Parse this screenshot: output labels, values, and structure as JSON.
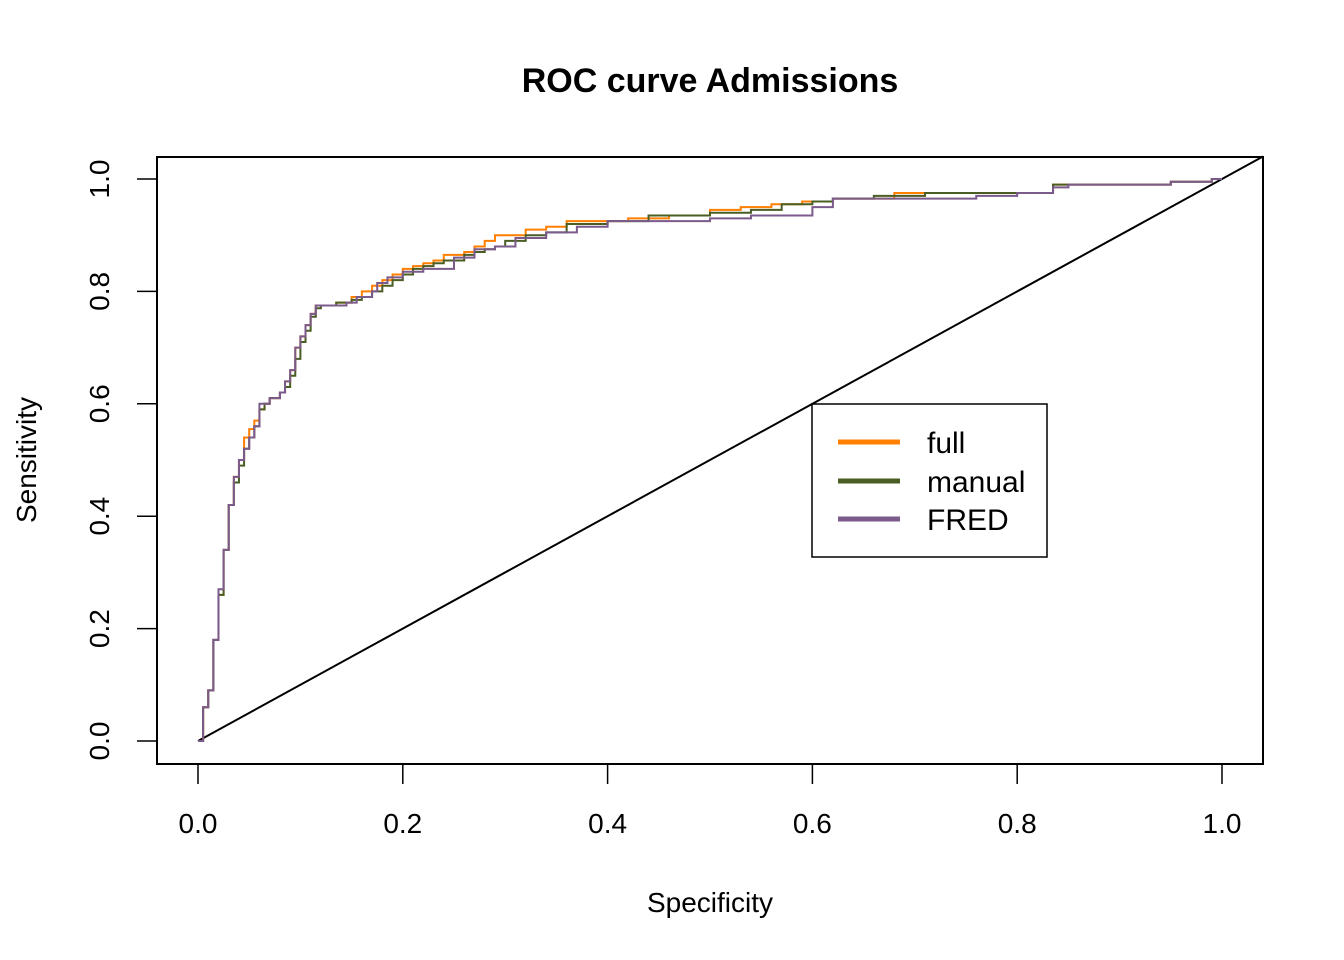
{
  "chart_data": {
    "type": "line",
    "title": "ROC curve Admissions",
    "xlabel": "Specificity",
    "ylabel": "Sensitivity",
    "xlim": [
      0.0,
      1.0
    ],
    "ylim": [
      0.0,
      1.0
    ],
    "x_ticks": [
      "0.0",
      "0.2",
      "0.4",
      "0.6",
      "0.8",
      "1.0"
    ],
    "y_ticks": [
      "0.0",
      "0.2",
      "0.4",
      "0.6",
      "0.8",
      "1.0"
    ],
    "grid": false,
    "legend_position": "center-right",
    "reference_line": {
      "x": [
        0,
        1.04
      ],
      "y": [
        0,
        1.04
      ]
    },
    "series": [
      {
        "name": "full",
        "color": "#ff7f00",
        "x": [
          0,
          0.005,
          0.01,
          0.015,
          0.02,
          0.025,
          0.03,
          0.035,
          0.04,
          0.045,
          0.05,
          0.055,
          0.06,
          0.065,
          0.07,
          0.08,
          0.085,
          0.09,
          0.095,
          0.1,
          0.105,
          0.11,
          0.115,
          0.12,
          0.135,
          0.15,
          0.16,
          0.17,
          0.18,
          0.19,
          0.2,
          0.21,
          0.22,
          0.23,
          0.24,
          0.26,
          0.27,
          0.28,
          0.29,
          0.3,
          0.32,
          0.34,
          0.36,
          0.4,
          0.42,
          0.44,
          0.46,
          0.5,
          0.53,
          0.56,
          0.59,
          0.62,
          0.65,
          0.68,
          0.72,
          0.76,
          0.8,
          0.83,
          0.835,
          0.85,
          0.9,
          0.95,
          0.975,
          0.99,
          1.0
        ],
        "y": [
          0,
          0.06,
          0.09,
          0.18,
          0.26,
          0.34,
          0.42,
          0.47,
          0.5,
          0.54,
          0.555,
          0.57,
          0.59,
          0.6,
          0.61,
          0.62,
          0.64,
          0.66,
          0.7,
          0.72,
          0.74,
          0.76,
          0.775,
          0.775,
          0.78,
          0.79,
          0.8,
          0.81,
          0.82,
          0.83,
          0.84,
          0.845,
          0.85,
          0.855,
          0.865,
          0.87,
          0.88,
          0.89,
          0.9,
          0.9,
          0.91,
          0.915,
          0.925,
          0.925,
          0.93,
          0.93,
          0.935,
          0.945,
          0.95,
          0.955,
          0.96,
          0.965,
          0.965,
          0.975,
          0.975,
          0.975,
          0.975,
          0.975,
          0.99,
          0.99,
          0.99,
          0.995,
          0.995,
          1.0,
          1.0
        ]
      },
      {
        "name": "manual",
        "color": "#4a5d23",
        "x": [
          0,
          0.005,
          0.01,
          0.015,
          0.02,
          0.025,
          0.03,
          0.035,
          0.04,
          0.045,
          0.05,
          0.055,
          0.06,
          0.065,
          0.07,
          0.08,
          0.085,
          0.09,
          0.095,
          0.1,
          0.105,
          0.11,
          0.115,
          0.12,
          0.135,
          0.15,
          0.16,
          0.17,
          0.18,
          0.19,
          0.2,
          0.21,
          0.22,
          0.23,
          0.24,
          0.26,
          0.27,
          0.28,
          0.29,
          0.3,
          0.32,
          0.34,
          0.36,
          0.4,
          0.44,
          0.5,
          0.54,
          0.57,
          0.6,
          0.62,
          0.66,
          0.71,
          0.76,
          0.8,
          0.835,
          0.85,
          0.9,
          0.95,
          0.975,
          0.99,
          1.0
        ],
        "y": [
          0,
          0.06,
          0.09,
          0.18,
          0.26,
          0.34,
          0.42,
          0.46,
          0.49,
          0.52,
          0.54,
          0.56,
          0.59,
          0.6,
          0.61,
          0.62,
          0.63,
          0.65,
          0.68,
          0.71,
          0.73,
          0.755,
          0.77,
          0.775,
          0.78,
          0.785,
          0.79,
          0.8,
          0.81,
          0.82,
          0.83,
          0.84,
          0.845,
          0.85,
          0.855,
          0.865,
          0.87,
          0.875,
          0.88,
          0.89,
          0.9,
          0.905,
          0.92,
          0.925,
          0.935,
          0.94,
          0.945,
          0.955,
          0.96,
          0.965,
          0.97,
          0.975,
          0.975,
          0.975,
          0.99,
          0.99,
          0.99,
          0.995,
          0.995,
          1.0,
          1.0
        ]
      },
      {
        "name": "FRED",
        "color": "#7b5a8c",
        "x": [
          0,
          0.005,
          0.01,
          0.015,
          0.02,
          0.025,
          0.03,
          0.035,
          0.04,
          0.045,
          0.05,
          0.055,
          0.06,
          0.065,
          0.07,
          0.08,
          0.085,
          0.09,
          0.095,
          0.1,
          0.105,
          0.11,
          0.115,
          0.12,
          0.145,
          0.155,
          0.17,
          0.175,
          0.185,
          0.2,
          0.22,
          0.25,
          0.27,
          0.29,
          0.31,
          0.34,
          0.37,
          0.4,
          0.44,
          0.5,
          0.54,
          0.6,
          0.62,
          0.66,
          0.7,
          0.76,
          0.8,
          0.835,
          0.85,
          0.9,
          0.95,
          0.975,
          0.99,
          1.0
        ],
        "y": [
          0,
          0.06,
          0.09,
          0.18,
          0.27,
          0.34,
          0.42,
          0.47,
          0.5,
          0.52,
          0.54,
          0.56,
          0.6,
          0.6,
          0.61,
          0.62,
          0.64,
          0.66,
          0.7,
          0.72,
          0.74,
          0.76,
          0.775,
          0.775,
          0.78,
          0.79,
          0.8,
          0.815,
          0.825,
          0.835,
          0.84,
          0.86,
          0.875,
          0.88,
          0.895,
          0.905,
          0.915,
          0.925,
          0.925,
          0.93,
          0.935,
          0.95,
          0.965,
          0.965,
          0.965,
          0.97,
          0.975,
          0.985,
          0.99,
          0.99,
          0.995,
          0.995,
          1.0,
          1.0
        ]
      }
    ]
  }
}
